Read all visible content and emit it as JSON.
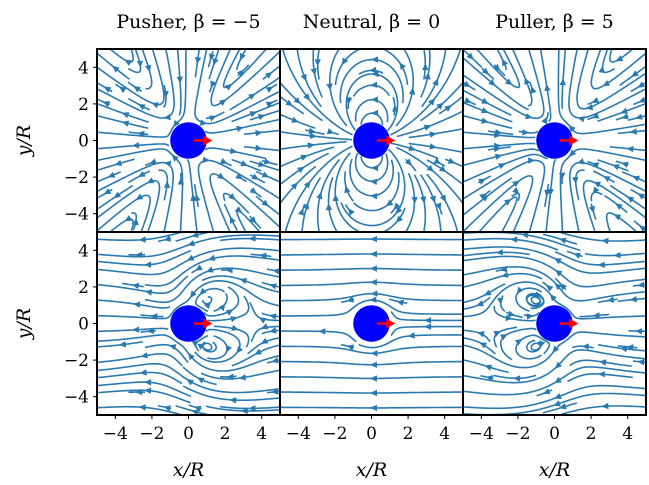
{
  "figure": {
    "columns": [
      {
        "title": "Pusher, β = −5",
        "beta": -5
      },
      {
        "title": "Neutral, β = 0",
        "beta": 0
      },
      {
        "title": "Puller, β = 5",
        "beta": 5
      }
    ],
    "rows": 2,
    "xlabel": "x/R",
    "ylabel": "y/R"
  },
  "chart_data": {
    "type": "streamplot",
    "xlim": [
      -5,
      5
    ],
    "ylim": [
      -5,
      5
    ],
    "x_ticks": [
      -4,
      -2,
      0,
      2,
      4
    ],
    "x_tick_labels": [
      "−4",
      "−2",
      "0",
      "2",
      "4"
    ],
    "y_ticks": [
      -4,
      -2,
      0,
      2,
      4
    ],
    "y_tick_labels": [
      "−4",
      "−2",
      "0",
      "2",
      "4"
    ],
    "xlabel": "x/R",
    "ylabel": "y/R",
    "grid": false,
    "body": {
      "center": [
        0,
        0
      ],
      "radius": 1,
      "color": "#0000ff"
    },
    "swim_arrow": {
      "from": [
        0.3,
        0
      ],
      "to": [
        1.3,
        0
      ],
      "color": "#ff0000"
    },
    "stream_color": "#2a7ab0",
    "panels": [
      {
        "row": 0,
        "col": 0,
        "beta": -5
      },
      {
        "row": 0,
        "col": 1,
        "beta": 0
      },
      {
        "row": 0,
        "col": 2,
        "beta": 5
      },
      {
        "row": 1,
        "col": 0,
        "beta": -5
      },
      {
        "row": 1,
        "col": 1,
        "beta": 0
      },
      {
        "row": 1,
        "col": 2,
        "beta": 5
      }
    ]
  }
}
